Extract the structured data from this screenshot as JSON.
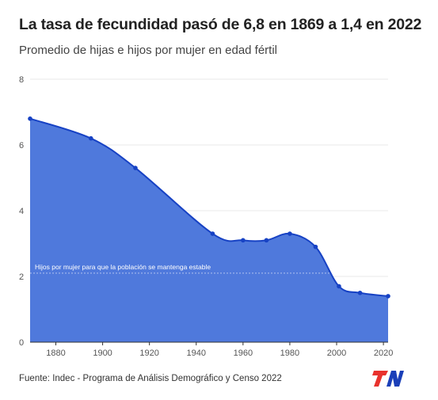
{
  "title": "La tasa de fecundidad pasó de 6,8 en 1869 a 1,4 en 2022",
  "subtitle": "Promedio de hijas e hijos por mujer en edad fértil",
  "source": "Fuente: Indec - Programa de Análisis Demográfico y Censo 2022",
  "logo_text": "TN",
  "colors": {
    "fill": "#4f79dc",
    "line": "#1742c4",
    "grid": "#e8e8e8",
    "logo_red": "#e8322d",
    "logo_blue": "#1a3fb8"
  },
  "chart_data": {
    "type": "area",
    "x": [
      1869,
      1895,
      1914,
      1947,
      1960,
      1970,
      1980,
      1991,
      2001,
      2010,
      2022
    ],
    "values": [
      6.8,
      6.2,
      5.3,
      3.3,
      3.1,
      3.1,
      3.3,
      2.9,
      1.7,
      1.5,
      1.4
    ],
    "xlim": [
      1869,
      2022
    ],
    "ylim": [
      0,
      8
    ],
    "x_ticks": [
      1880,
      1900,
      1920,
      1940,
      1960,
      1980,
      2000,
      2020
    ],
    "y_ticks": [
      0,
      2,
      4,
      6,
      8
    ],
    "grid": true,
    "reference_line": {
      "value": 2.1,
      "label": "Hijos por mujer para que la población se mantenga estable"
    }
  }
}
